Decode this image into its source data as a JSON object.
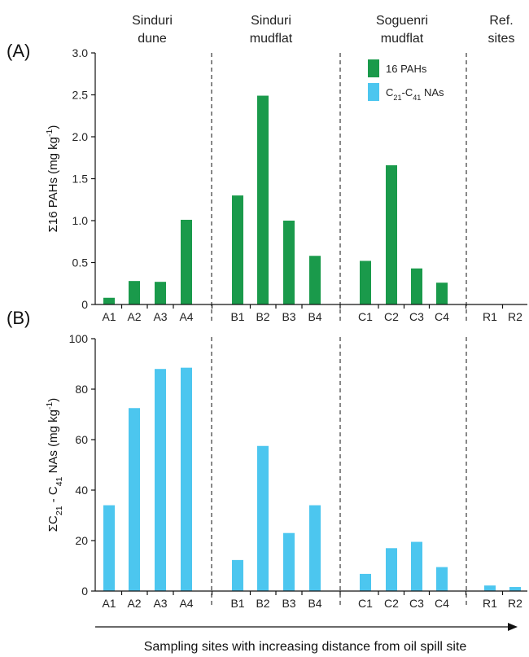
{
  "groups": [
    {
      "line1": "Sinduri",
      "line2": "dune"
    },
    {
      "line1": "Sinduri",
      "line2": "mudflat"
    },
    {
      "line1": "Soguenri",
      "line2": "mudflat"
    },
    {
      "line1": "Ref.",
      "line2": "sites"
    }
  ],
  "legend": {
    "pah_label": "16 PAHs",
    "nas_label_main": "C21-C41 NAs"
  },
  "bottom_caption": "Sampling sites with increasing distance from oil spill site",
  "colors": {
    "pah": "#1a9a4b",
    "nas": "#4cc6ef"
  },
  "chart_data": [
    {
      "type": "bar",
      "panel": "(A)",
      "ylabel": "Σ16 PAHs (mg kg-1)",
      "categories": [
        "A1",
        "A2",
        "A3",
        "A4",
        "B1",
        "B2",
        "B3",
        "B4",
        "C1",
        "C2",
        "C3",
        "C4",
        "R1",
        "R2"
      ],
      "series": [
        {
          "name": "16 PAHs",
          "values": [
            0.08,
            0.28,
            0.27,
            1.01,
            1.3,
            2.49,
            1.0,
            0.58,
            0.52,
            1.66,
            0.43,
            0.26,
            0,
            0
          ]
        }
      ],
      "ylim": [
        0,
        3.0
      ],
      "yticks": [
        "0",
        "0.5",
        "1.0",
        "1.5",
        "2.0",
        "2.5",
        "3.0"
      ],
      "legend_position": "top-right"
    },
    {
      "type": "bar",
      "panel": "(B)",
      "ylabel": "ΣC21 - C41 NAs (mg kg-1)",
      "categories": [
        "A1",
        "A2",
        "A3",
        "A4",
        "B1",
        "B2",
        "B3",
        "B4",
        "C1",
        "C2",
        "C3",
        "C4",
        "R1",
        "R2"
      ],
      "series": [
        {
          "name": "C21-C41 NAs",
          "values": [
            34,
            72.5,
            88,
            88.5,
            12.3,
            57.5,
            23,
            34,
            6.8,
            17,
            19.5,
            9.5,
            2.2,
            1.6
          ]
        }
      ],
      "ylim": [
        0,
        100
      ],
      "yticks": [
        "0",
        "20",
        "40",
        "60",
        "80",
        "100"
      ]
    }
  ]
}
